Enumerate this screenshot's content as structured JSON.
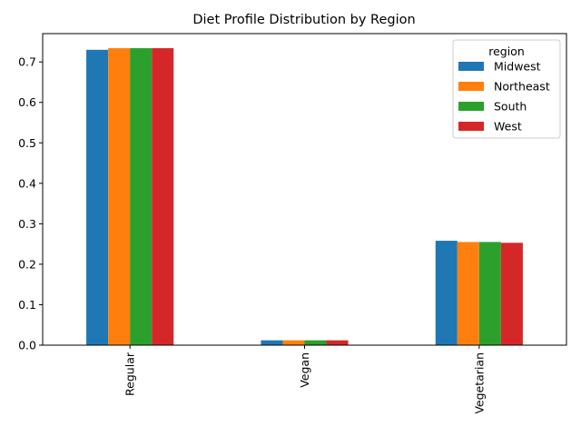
{
  "chart_data": {
    "type": "bar",
    "title": "Diet Profile Distribution by Region",
    "xlabel": "",
    "ylabel": "",
    "categories": [
      "Regular",
      "Vegan",
      "Vegetarian"
    ],
    "series": [
      {
        "name": "Midwest",
        "color": "#1f77b4",
        "values": [
          0.73,
          0.012,
          0.258
        ]
      },
      {
        "name": "Northeast",
        "color": "#ff7f0e",
        "values": [
          0.734,
          0.012,
          0.255
        ]
      },
      {
        "name": "South",
        "color": "#2ca02c",
        "values": [
          0.734,
          0.012,
          0.255
        ]
      },
      {
        "name": "West",
        "color": "#d62728",
        "values": [
          0.734,
          0.012,
          0.253
        ]
      }
    ],
    "ylim": [
      0,
      0.77
    ],
    "yticks": [
      "0.0",
      "0.1",
      "0.2",
      "0.3",
      "0.4",
      "0.5",
      "0.6",
      "0.7"
    ],
    "grid": false,
    "legend": {
      "title": "region",
      "placement": "top-right"
    }
  }
}
